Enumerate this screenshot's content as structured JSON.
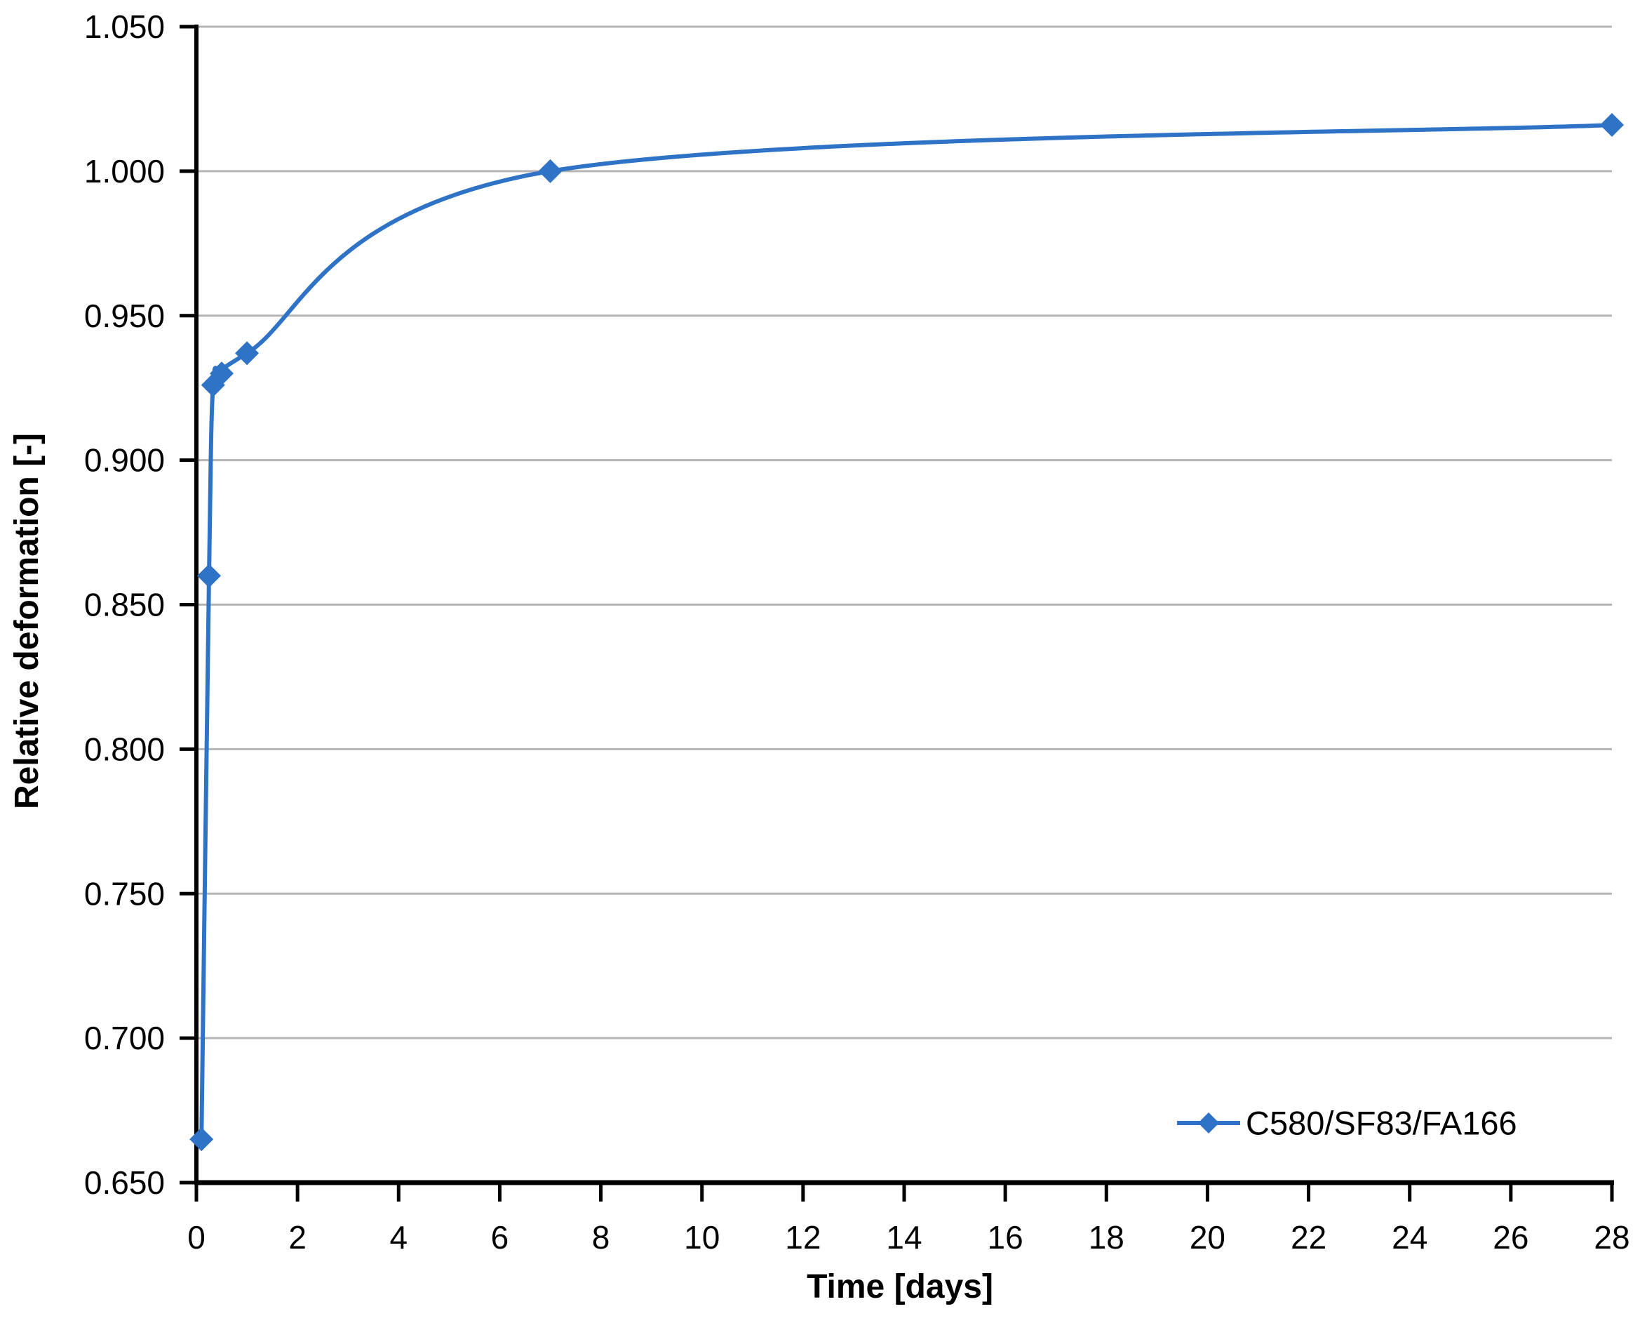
{
  "chart_data": {
    "type": "line",
    "title": "",
    "xlabel": "Time [days]",
    "ylabel": "Relative deformation [-]",
    "xlim": [
      0,
      28
    ],
    "ylim": [
      0.65,
      1.05
    ],
    "x_ticks": [
      0,
      2,
      4,
      6,
      8,
      10,
      12,
      14,
      16,
      18,
      20,
      22,
      24,
      26,
      28
    ],
    "x_tick_labels": [
      "0",
      "2",
      "4",
      "6",
      "8",
      "10",
      "12",
      "14",
      "16",
      "18",
      "20",
      "22",
      "24",
      "26",
      "28"
    ],
    "y_ticks": [
      0.65,
      0.7,
      0.75,
      0.8,
      0.85,
      0.9,
      0.95,
      1.0,
      1.05
    ],
    "y_tick_labels": [
      "0.650",
      "0.700",
      "0.750",
      "0.800",
      "0.850",
      "0.900",
      "0.950",
      "1.000",
      "1.050"
    ],
    "grid": "horizontal",
    "smooth": true,
    "legend_position": "bottom-right",
    "series": [
      {
        "name": "C580/SF83/FA166",
        "color": "#2E73C5",
        "marker": "diamond",
        "x": [
          0.1,
          0.25,
          0.33,
          0.5,
          1,
          7,
          28
        ],
        "y": [
          0.665,
          0.86,
          0.926,
          0.93,
          0.937,
          1.0,
          1.016
        ]
      }
    ]
  },
  "colors": {
    "background": "#FFFFFF",
    "grid": "#B5B5B5",
    "axis": "#000000",
    "text": "#000000"
  }
}
